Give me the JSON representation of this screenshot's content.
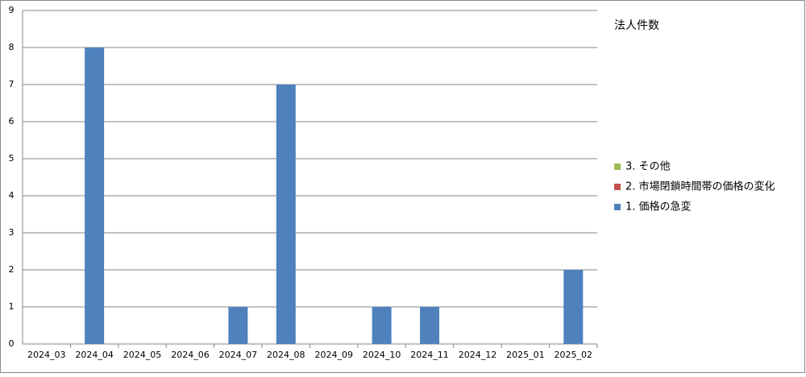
{
  "chart_data": {
    "type": "bar",
    "stacked": true,
    "title": "法人件数",
    "categories": [
      "2024_03",
      "2024_04",
      "2024_05",
      "2024_06",
      "2024_07",
      "2024_08",
      "2024_09",
      "2024_10",
      "2024_11",
      "2024_12",
      "2025_01",
      "2025_02"
    ],
    "series": [
      {
        "name": "1. 価格の急変",
        "color": "#4f81bd",
        "values": [
          0,
          8,
          0,
          0,
          1,
          7,
          0,
          1,
          1,
          0,
          0,
          2
        ]
      },
      {
        "name": "2. 市場閉鎖時間帯の価格の変化",
        "color": "#c0504d",
        "values": [
          0,
          0,
          0,
          0,
          0,
          0,
          0,
          0,
          0,
          0,
          0,
          0
        ]
      },
      {
        "name": "3. その他",
        "color": "#9bbb59",
        "values": [
          0,
          0,
          0,
          0,
          0,
          0,
          0,
          0,
          0,
          0,
          0,
          0
        ]
      }
    ],
    "ylim": [
      0,
      9
    ],
    "yticks": [
      0,
      1,
      2,
      3,
      4,
      5,
      6,
      7,
      8,
      9
    ],
    "grid": true,
    "legend": "right"
  }
}
